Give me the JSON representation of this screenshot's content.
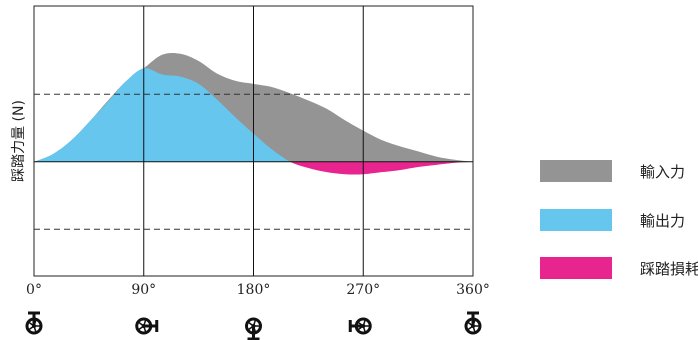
{
  "chart_data": {
    "type": "area",
    "title": "",
    "ylabel": "踩踏力量 (N)",
    "xlabel": "",
    "xlim": [
      0,
      360
    ],
    "ylim": [
      -110,
      150
    ],
    "x_ticks": [
      "0°",
      "90°",
      "180°",
      "270°",
      "360°"
    ],
    "grid_vertical": [
      90,
      180,
      270
    ],
    "dashed_reference_lines": [
      65,
      -65
    ],
    "series": [
      {
        "name": "輸入力",
        "color": "#949494",
        "x": [
          0,
          15,
          30,
          45,
          60,
          75,
          90,
          105,
          120,
          135,
          150,
          165,
          180,
          195,
          210,
          225,
          240,
          255,
          270,
          285,
          300,
          315,
          330,
          345,
          360
        ],
        "values": [
          0,
          7,
          20,
          38,
          58,
          77,
          90,
          103,
          104,
          97,
          85,
          78,
          75,
          72,
          66,
          59,
          51,
          40,
          30,
          21,
          15,
          10,
          5,
          2,
          0
        ]
      },
      {
        "name": "輸出力",
        "color": "#66c6ee",
        "x": [
          0,
          15,
          30,
          45,
          60,
          75,
          90,
          105,
          120,
          135,
          150,
          165,
          180,
          195,
          210,
          225,
          240,
          255,
          270,
          285,
          300,
          315,
          330,
          345,
          360
        ],
        "values": [
          0,
          7,
          20,
          38,
          57,
          77,
          90,
          84,
          82,
          75,
          60,
          43,
          27,
          12,
          0,
          -6,
          -10,
          -12,
          -12,
          -10,
          -8,
          -5,
          -3,
          -1,
          0
        ]
      },
      {
        "name": "踩踏損耗",
        "color": "#e8258f"
      }
    ]
  }
}
